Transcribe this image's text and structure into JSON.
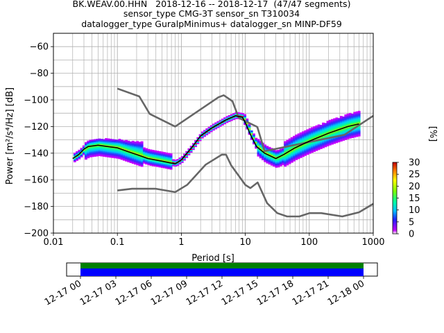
{
  "title": {
    "line1": "BK.WEAV.00.HHN   2018-12-16 -- 2018-12-17  (47/47 segments)",
    "line2": "sensor_type CMG-3T sensor_sn T310034",
    "line3": "datalogger_type GuralpMinimus+ datalogger_sn MINP-DF59"
  },
  "chart_data": {
    "type": "heatmap",
    "xlabel": "Period [s]",
    "ylabel": "Power [m²/s⁴/Hz] [dB]",
    "xscale": "log",
    "xlim": [
      0.01,
      1000
    ],
    "ylim": [
      -200,
      -50
    ],
    "xticks": [
      {
        "value": 0.01,
        "label": "0.01"
      },
      {
        "value": 0.1,
        "label": "0.1"
      },
      {
        "value": 1,
        "label": "1"
      },
      {
        "value": 10,
        "label": "10"
      },
      {
        "value": 100,
        "label": "100"
      },
      {
        "value": 1000,
        "label": "1000"
      }
    ],
    "yticks": [
      -60,
      -80,
      -100,
      -120,
      -140,
      -160,
      -180,
      -200
    ],
    "grid": true,
    "colorbar": {
      "label": "[%]",
      "min": 0,
      "max": 30,
      "ticks": [
        0,
        5,
        10,
        15,
        20,
        25,
        30
      ]
    },
    "series": [
      {
        "role": "new_high_noise_model",
        "color": "#666666",
        "points": [
          [
            0.1,
            -91.5
          ],
          [
            0.22,
            -97.4
          ],
          [
            0.32,
            -110.5
          ],
          [
            0.8,
            -120
          ],
          [
            3.8,
            -98
          ],
          [
            4.6,
            -96.5
          ],
          [
            6.3,
            -101
          ],
          [
            7.9,
            -113.5
          ],
          [
            15.4,
            -120.3
          ],
          [
            20,
            -138.5
          ],
          [
            354.8,
            -126.2
          ],
          [
            1000,
            -112
          ]
        ]
      },
      {
        "role": "new_low_noise_model",
        "color": "#666666",
        "points": [
          [
            0.1,
            -168
          ],
          [
            0.17,
            -166.7
          ],
          [
            0.4,
            -166.7
          ],
          [
            0.8,
            -169.2
          ],
          [
            1.24,
            -163.7
          ],
          [
            2.4,
            -148.6
          ],
          [
            4.3,
            -141.1
          ],
          [
            5,
            -141.1
          ],
          [
            6,
            -149
          ],
          [
            10,
            -163.8
          ],
          [
            12,
            -166.2
          ],
          [
            15.6,
            -162
          ],
          [
            21.9,
            -177.5
          ],
          [
            31.6,
            -185
          ],
          [
            45,
            -187.5
          ],
          [
            70,
            -187.5
          ],
          [
            101,
            -185
          ],
          [
            154,
            -185
          ],
          [
            328,
            -187.5
          ],
          [
            600,
            -184.4
          ],
          [
            1000,
            -178
          ]
        ]
      },
      {
        "role": "mean_psd",
        "color": "#000000",
        "points": [
          [
            0.02,
            -144
          ],
          [
            0.025,
            -141
          ],
          [
            0.03,
            -137
          ],
          [
            0.035,
            -135
          ],
          [
            0.05,
            -134
          ],
          [
            0.07,
            -135
          ],
          [
            0.1,
            -136
          ],
          [
            0.15,
            -139
          ],
          [
            0.2,
            -141
          ],
          [
            0.3,
            -144
          ],
          [
            0.5,
            -146
          ],
          [
            0.8,
            -148
          ],
          [
            1,
            -145
          ],
          [
            1.5,
            -135
          ],
          [
            2,
            -127
          ],
          [
            3,
            -121
          ],
          [
            5,
            -115
          ],
          [
            7,
            -112
          ],
          [
            9,
            -113
          ],
          [
            10,
            -117
          ],
          [
            12,
            -126
          ],
          [
            15,
            -135
          ],
          [
            20,
            -140
          ],
          [
            30,
            -144
          ],
          [
            40,
            -141
          ],
          [
            60,
            -136
          ],
          [
            100,
            -131
          ],
          [
            200,
            -125
          ],
          [
            400,
            -120
          ],
          [
            600,
            -118
          ]
        ]
      }
    ]
  },
  "timeline": {
    "axis_labels": [
      "12-17 00",
      "12-17 03",
      "12-17 06",
      "12-17 09",
      "12-17 12",
      "12-17 15",
      "12-17 18",
      "12-17 21",
      "12-18 00"
    ],
    "bars": [
      {
        "role": "data_segments",
        "color": "#008000"
      },
      {
        "role": "coverage",
        "color": "#0000ff"
      }
    ]
  }
}
